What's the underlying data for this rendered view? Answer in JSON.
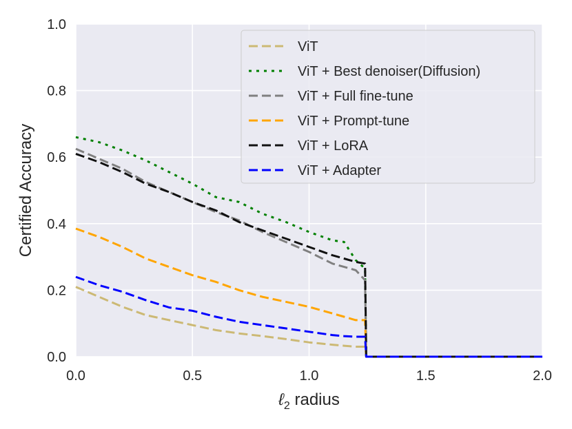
{
  "chart_data": {
    "type": "line",
    "title": "",
    "xlabel": "ℓ",
    "xlabel_subscript": "2",
    "xlabel_suffix": " radius",
    "ylabel": "Certified Accuracy",
    "xlim": [
      0.0,
      2.0
    ],
    "ylim": [
      0.0,
      1.0
    ],
    "xticks": [
      0.0,
      0.5,
      1.0,
      1.5,
      2.0
    ],
    "xtick_labels": [
      "0.0",
      "0.5",
      "1.0",
      "1.5",
      "2.0"
    ],
    "yticks": [
      0.0,
      0.2,
      0.4,
      0.6,
      0.8,
      1.0
    ],
    "ytick_labels": [
      "0.0",
      "0.2",
      "0.4",
      "0.6",
      "0.8",
      "1.0"
    ],
    "grid": true,
    "background": "#eaeaf2",
    "legend_position": "top-right",
    "series": [
      {
        "name": "ViT",
        "color": "#ccb974",
        "dash": "dashed",
        "x": [
          0.0,
          0.1,
          0.2,
          0.3,
          0.4,
          0.5,
          0.6,
          0.7,
          0.8,
          0.9,
          1.0,
          1.1,
          1.15,
          1.2,
          1.24,
          1.245,
          2.0
        ],
        "y": [
          0.21,
          0.18,
          0.15,
          0.125,
          0.11,
          0.095,
          0.08,
          0.07,
          0.062,
          0.053,
          0.043,
          0.036,
          0.033,
          0.03,
          0.03,
          0.0,
          0.0
        ]
      },
      {
        "name": "ViT + Best denoiser(Diffusion)",
        "color": "#008000",
        "dash": "dotted",
        "x": [
          0.0,
          0.1,
          0.2,
          0.3,
          0.4,
          0.5,
          0.6,
          0.7,
          0.8,
          0.9,
          1.0,
          1.1,
          1.15,
          1.2,
          1.24,
          1.245,
          2.0
        ],
        "y": [
          0.66,
          0.645,
          0.62,
          0.59,
          0.555,
          0.52,
          0.48,
          0.465,
          0.43,
          0.405,
          0.375,
          0.35,
          0.345,
          0.29,
          0.265,
          0.0,
          0.0
        ]
      },
      {
        "name": "ViT + Full fine-tune",
        "color": "#808080",
        "dash": "dashed",
        "x": [
          0.0,
          0.1,
          0.2,
          0.3,
          0.4,
          0.5,
          0.6,
          0.7,
          0.8,
          0.9,
          1.0,
          1.1,
          1.15,
          1.2,
          1.24,
          1.245,
          2.0
        ],
        "y": [
          0.625,
          0.595,
          0.565,
          0.525,
          0.495,
          0.465,
          0.435,
          0.41,
          0.375,
          0.345,
          0.315,
          0.28,
          0.27,
          0.26,
          0.23,
          0.0,
          0.0
        ]
      },
      {
        "name": "ViT + Prompt-tune",
        "color": "#ffa500",
        "dash": "dashed",
        "x": [
          0.0,
          0.1,
          0.2,
          0.3,
          0.4,
          0.5,
          0.6,
          0.7,
          0.8,
          0.9,
          1.0,
          1.1,
          1.15,
          1.2,
          1.24,
          1.245,
          2.0
        ],
        "y": [
          0.385,
          0.36,
          0.33,
          0.295,
          0.27,
          0.245,
          0.225,
          0.2,
          0.18,
          0.165,
          0.15,
          0.13,
          0.12,
          0.11,
          0.11,
          0.0,
          0.0
        ]
      },
      {
        "name": "ViT + LoRA",
        "color": "#111111",
        "dash": "dashed",
        "x": [
          0.0,
          0.1,
          0.2,
          0.3,
          0.4,
          0.5,
          0.6,
          0.7,
          0.8,
          0.9,
          1.0,
          1.1,
          1.15,
          1.2,
          1.24,
          1.245,
          2.0
        ],
        "y": [
          0.61,
          0.585,
          0.555,
          0.52,
          0.495,
          0.465,
          0.44,
          0.405,
          0.38,
          0.355,
          0.33,
          0.305,
          0.295,
          0.285,
          0.28,
          0.0,
          0.0
        ]
      },
      {
        "name": "ViT + Adapter",
        "color": "#0000ff",
        "dash": "dashed",
        "x": [
          0.0,
          0.1,
          0.2,
          0.3,
          0.4,
          0.5,
          0.6,
          0.7,
          0.8,
          0.9,
          1.0,
          1.1,
          1.15,
          1.2,
          1.24,
          1.245,
          2.0
        ],
        "y": [
          0.24,
          0.215,
          0.195,
          0.17,
          0.148,
          0.138,
          0.12,
          0.105,
          0.095,
          0.085,
          0.075,
          0.065,
          0.062,
          0.06,
          0.06,
          0.0,
          0.0
        ]
      }
    ]
  }
}
